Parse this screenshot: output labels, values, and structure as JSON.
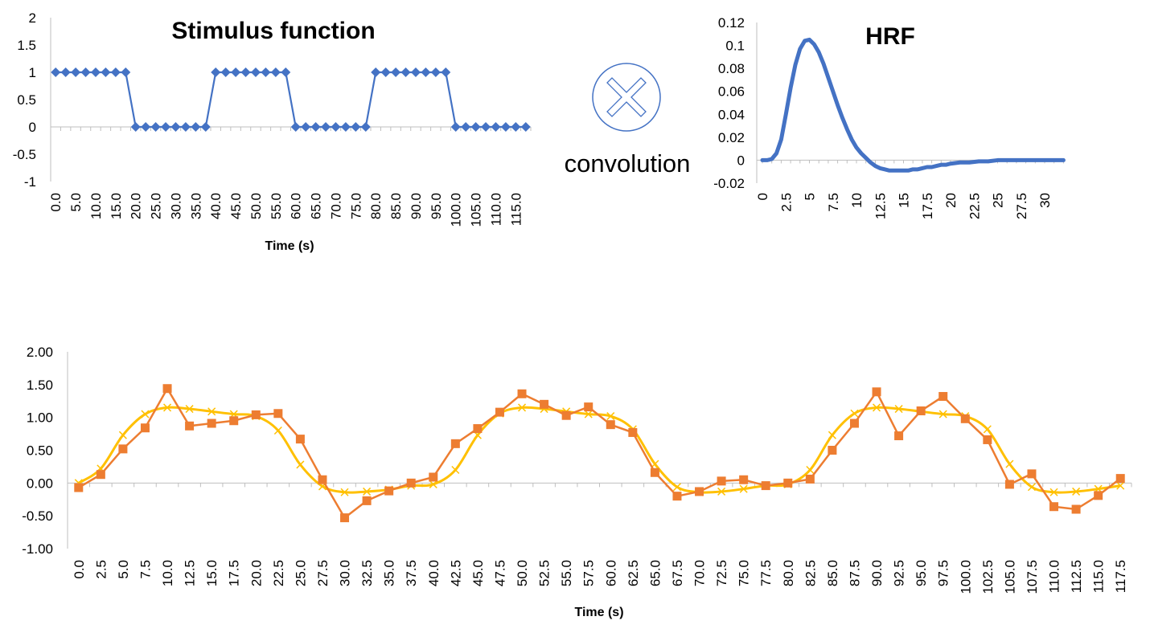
{
  "operator": {
    "label": "convolution",
    "icon": "multiply-circle-icon"
  },
  "colors": {
    "stimulus": "#4472C4",
    "hrf": "#4472C4",
    "measured": "#ED7D31",
    "model": "#FFC000",
    "axis": "#BFBFBF"
  },
  "chart_data": [
    {
      "id": "stimulus",
      "type": "line",
      "title": "Stimulus function",
      "xlabel": "Time (s)",
      "ylabel": "",
      "ylim": [
        -1,
        2
      ],
      "yticks": [
        "2",
        "1.5",
        "1",
        "0.5",
        "0",
        "-0.5",
        "-1"
      ],
      "x_tick_labels": [
        "0.0",
        "5.0",
        "10.0",
        "15.0",
        "20.0",
        "25.0",
        "30.0",
        "35.0",
        "40.0",
        "45.0",
        "50.0",
        "55.0",
        "60.0",
        "65.0",
        "70.0",
        "75.0",
        "80.0",
        "85.0",
        "90.0",
        "95.0",
        "100.0",
        "105.0",
        "110.0",
        "115.0"
      ],
      "marker": "diamond",
      "series": [
        {
          "values": [
            1,
            1,
            1,
            1,
            1,
            1,
            1,
            1,
            0,
            0,
            0,
            0,
            0,
            0,
            0,
            0,
            1,
            1,
            1,
            1,
            1,
            1,
            1,
            1,
            0,
            0,
            0,
            0,
            0,
            0,
            0,
            0,
            1,
            1,
            1,
            1,
            1,
            1,
            1,
            1,
            0,
            0,
            0,
            0,
            0,
            0,
            0,
            0
          ]
        }
      ]
    },
    {
      "id": "hrf",
      "type": "line",
      "title": "HRF",
      "xlabel": "",
      "ylabel": "",
      "ylim": [
        -0.02,
        0.12
      ],
      "yticks": [
        "0.12",
        "0.1",
        "0.08",
        "0.06",
        "0.04",
        "0.02",
        "0",
        "-0.02"
      ],
      "x_tick_labels": [
        "0",
        "2.5",
        "5",
        "7.5",
        "10",
        "12.5",
        "15",
        "17.5",
        "20",
        "22.5",
        "25",
        "27.5",
        "30"
      ],
      "x": [
        0,
        0.5,
        1,
        1.5,
        2,
        2.5,
        3,
        3.5,
        4,
        4.5,
        5,
        5.5,
        6,
        6.5,
        7,
        7.5,
        8,
        8.5,
        9,
        9.5,
        10,
        10.5,
        11,
        11.5,
        12,
        12.5,
        13,
        13.5,
        14,
        14.5,
        15,
        15.5,
        16,
        16.5,
        17,
        17.5,
        18,
        18.5,
        19,
        19.5,
        20,
        21,
        22,
        23,
        24,
        25,
        26,
        27,
        28,
        29,
        30,
        31,
        32
      ],
      "series": [
        {
          "values": [
            0,
            0,
            0.001,
            0.006,
            0.018,
            0.04,
            0.063,
            0.083,
            0.097,
            0.104,
            0.105,
            0.101,
            0.094,
            0.084,
            0.072,
            0.06,
            0.048,
            0.037,
            0.027,
            0.018,
            0.011,
            0.006,
            0.002,
            -0.002,
            -0.005,
            -0.007,
            -0.008,
            -0.009,
            -0.009,
            -0.009,
            -0.009,
            -0.009,
            -0.008,
            -0.008,
            -0.007,
            -0.006,
            -0.006,
            -0.005,
            -0.004,
            -0.004,
            -0.003,
            -0.002,
            -0.002,
            -0.001,
            -0.001,
            0,
            0,
            0,
            0,
            0,
            0,
            0,
            0
          ]
        }
      ]
    },
    {
      "id": "bold",
      "type": "line",
      "title": "",
      "xlabel": "Time (s)",
      "ylabel": "",
      "ylim": [
        -1,
        2
      ],
      "yticks": [
        "2.00",
        "1.50",
        "1.00",
        "0.50",
        "0.00",
        "-0.50",
        "-1.00"
      ],
      "categories": [
        "0.0",
        "2.5",
        "5.0",
        "7.5",
        "10.0",
        "12.5",
        "15.0",
        "17.5",
        "20.0",
        "22.5",
        "25.0",
        "27.5",
        "30.0",
        "32.5",
        "35.0",
        "37.5",
        "40.0",
        "42.5",
        "45.0",
        "47.5",
        "50.0",
        "52.5",
        "55.0",
        "57.5",
        "60.0",
        "62.5",
        "65.0",
        "67.5",
        "70.0",
        "72.5",
        "75.0",
        "77.5",
        "80.0",
        "82.5",
        "85.0",
        "87.5",
        "90.0",
        "92.5",
        "95.0",
        "97.5",
        "100.0",
        "102.5",
        "105.0",
        "107.5",
        "110.0",
        "112.5",
        "115.0",
        "117.5"
      ],
      "series": [
        {
          "marker": "square",
          "color": "#ED7D31",
          "values": [
            -0.07,
            0.13,
            0.52,
            0.84,
            1.44,
            0.87,
            0.91,
            0.95,
            1.04,
            1.06,
            0.67,
            0.05,
            -0.53,
            -0.27,
            -0.12,
            0.0,
            0.09,
            0.6,
            0.83,
            1.08,
            1.36,
            1.2,
            1.03,
            1.16,
            0.89,
            0.77,
            0.16,
            -0.2,
            -0.13,
            0.03,
            0.05,
            -0.04,
            0.0,
            0.06,
            0.5,
            0.91,
            1.39,
            0.72,
            1.1,
            1.32,
            0.98,
            0.66,
            -0.02,
            0.14,
            -0.36,
            -0.4,
            -0.19,
            0.07
          ]
        },
        {
          "marker": "x",
          "color": "#FFC000",
          "values": [
            0.0,
            0.22,
            0.73,
            1.05,
            1.15,
            1.13,
            1.09,
            1.05,
            1.02,
            0.8,
            0.28,
            -0.05,
            -0.14,
            -0.13,
            -0.1,
            -0.04,
            -0.02,
            0.2,
            0.73,
            1.06,
            1.15,
            1.13,
            1.09,
            1.05,
            1.02,
            0.82,
            0.29,
            -0.06,
            -0.14,
            -0.13,
            -0.09,
            -0.04,
            -0.02,
            0.2,
            0.73,
            1.06,
            1.15,
            1.13,
            1.09,
            1.05,
            1.02,
            0.82,
            0.29,
            -0.06,
            -0.14,
            -0.13,
            -0.09,
            -0.04
          ]
        }
      ]
    }
  ]
}
